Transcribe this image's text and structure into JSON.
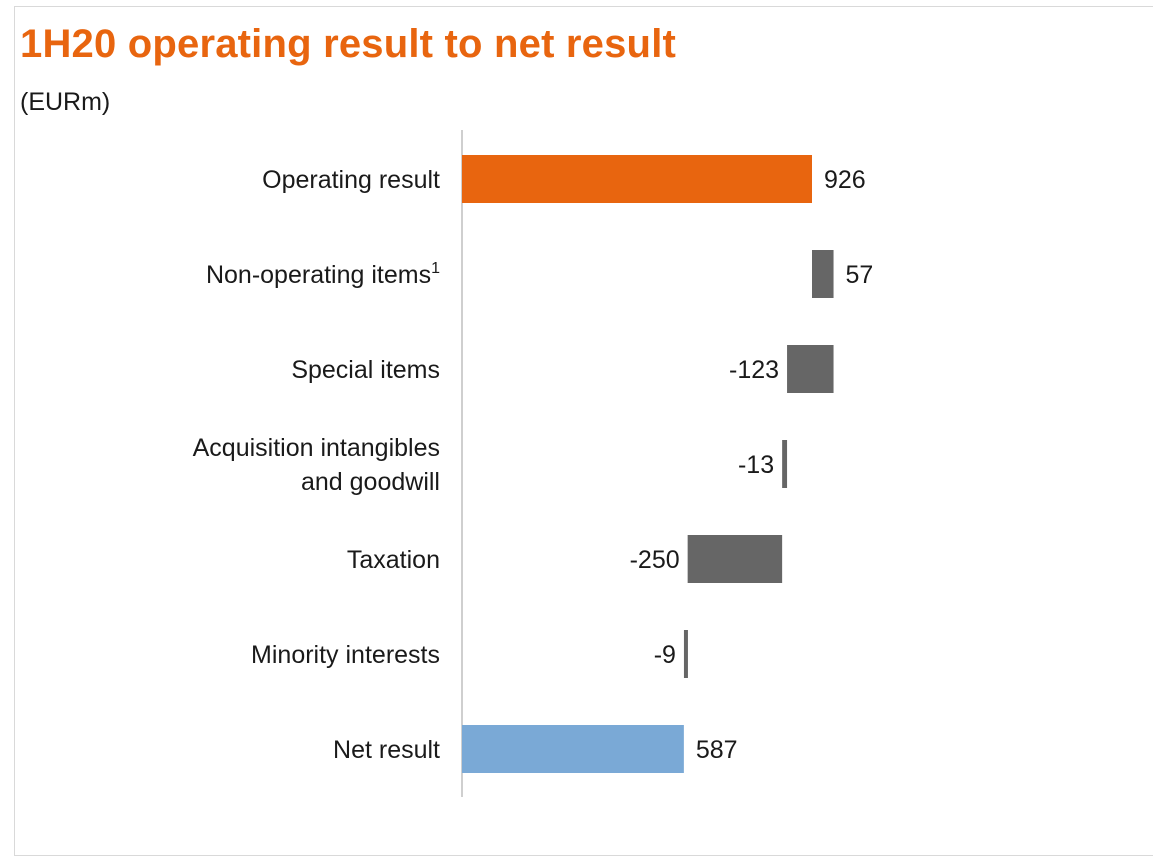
{
  "title": "1H20 operating result to net result",
  "unit": "(EURm)",
  "colors": {
    "total_start": "#e8650f",
    "step": "#666666",
    "total_end": "#7aa9d6",
    "axis": "#bfbfbf"
  },
  "chart_data": {
    "type": "bar",
    "orientation": "horizontal-waterfall",
    "title": "1H20 operating result to net result",
    "ylabel": "(EURm)",
    "categories": [
      [
        "Operating result"
      ],
      [
        "Non-operating items"
      ],
      [
        "Special items"
      ],
      [
        "Acquisition intangibles",
        "and goodwill"
      ],
      [
        "Taxation"
      ],
      [
        "Minority interests"
      ],
      [
        "Net result"
      ]
    ],
    "footnotes": [
      "",
      "1",
      "",
      "",
      "",
      "",
      ""
    ],
    "values": [
      926,
      57,
      -123,
      -13,
      -250,
      -9,
      587
    ],
    "value_labels": [
      "926",
      "57",
      "-123",
      "-13",
      "-250",
      "-9",
      "587"
    ],
    "kinds": [
      "total",
      "step",
      "step",
      "step",
      "step",
      "step",
      "total"
    ],
    "xlim": [
      0,
      1000
    ]
  }
}
